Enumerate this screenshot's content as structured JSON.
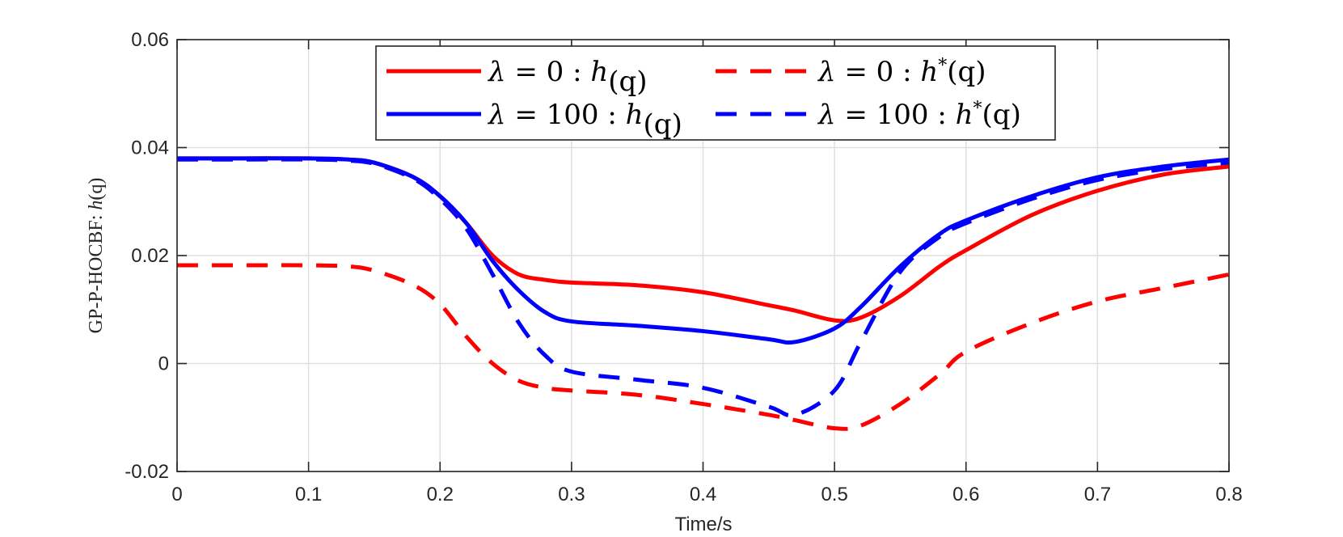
{
  "chart_data": {
    "type": "line",
    "title": "",
    "xlabel": "Time/s",
    "ylabel_prefix": "GP-P-HOCBF: ",
    "ylabel_func": "h",
    "ylabel_arg": "(q)",
    "xlim": [
      0,
      0.8
    ],
    "ylim": [
      -0.02,
      0.06
    ],
    "grid": true,
    "legend_position": "top-center",
    "x_ticks": [
      0,
      0.1,
      0.2,
      0.3,
      0.4,
      0.5,
      0.6,
      0.7,
      0.8
    ],
    "x_tick_labels": [
      "0",
      "0.1",
      "0.2",
      "0.3",
      "0.4",
      "0.5",
      "0.6",
      "0.7",
      "0.8"
    ],
    "y_ticks": [
      -0.02,
      0,
      0.02,
      0.04,
      0.06
    ],
    "y_tick_labels": [
      "-0.02",
      "0",
      "0.02",
      "0.04",
      "0.06"
    ],
    "x": [
      0,
      0.05,
      0.1,
      0.13,
      0.15,
      0.18,
      0.2,
      0.22,
      0.24,
      0.26,
      0.28,
      0.3,
      0.35,
      0.4,
      0.45,
      0.47,
      0.5,
      0.52,
      0.55,
      0.58,
      0.6,
      0.65,
      0.7,
      0.75,
      0.8
    ],
    "series": [
      {
        "name": "λ = 0 : h(q)",
        "legend_lambda": "λ",
        "legend_value": " = 0 : ",
        "legend_func": "h",
        "legend_star": "",
        "legend_arg": "(q)",
        "color": "#ff0000",
        "dash": "solid",
        "values": [
          0.038,
          0.038,
          0.038,
          0.0378,
          0.0372,
          0.0345,
          0.031,
          0.026,
          0.02,
          0.0165,
          0.0155,
          0.015,
          0.0145,
          0.0132,
          0.0108,
          0.0098,
          0.008,
          0.0085,
          0.0125,
          0.018,
          0.021,
          0.0275,
          0.032,
          0.035,
          0.0365
        ]
      },
      {
        "name": "λ = 0 : h*(q)",
        "legend_lambda": "λ",
        "legend_value": " = 0 : ",
        "legend_func": "h",
        "legend_star": "*",
        "legend_arg": "(q)",
        "color": "#ff0000",
        "dash": "dashed",
        "values": [
          0.0182,
          0.0182,
          0.0182,
          0.018,
          0.0172,
          0.0145,
          0.011,
          0.005,
          0.0,
          -0.0032,
          -0.0045,
          -0.005,
          -0.0058,
          -0.0075,
          -0.0095,
          -0.0105,
          -0.012,
          -0.0115,
          -0.0075,
          -0.002,
          0.0022,
          0.0075,
          0.0115,
          0.014,
          0.0165
        ]
      },
      {
        "name": "λ = 100 : h(q)",
        "legend_lambda": "λ",
        "legend_value": " = 100 : ",
        "legend_func": "h",
        "legend_star": "",
        "legend_arg": "(q)",
        "color": "#0000ff",
        "dash": "solid",
        "values": [
          0.038,
          0.038,
          0.038,
          0.0378,
          0.0372,
          0.0345,
          0.031,
          0.026,
          0.019,
          0.0135,
          0.0095,
          0.0078,
          0.007,
          0.006,
          0.0045,
          0.004,
          0.0065,
          0.0105,
          0.018,
          0.024,
          0.0265,
          0.031,
          0.0345,
          0.0365,
          0.0378
        ]
      },
      {
        "name": "λ = 100 : h*(q)",
        "legend_lambda": "λ",
        "legend_value": " = 100 : ",
        "legend_func": "h",
        "legend_star": "*",
        "legend_arg": "(q)",
        "color": "#0000ff",
        "dash": "dashed",
        "values": [
          0.0378,
          0.0378,
          0.0378,
          0.0376,
          0.037,
          0.0342,
          0.0305,
          0.025,
          0.0165,
          0.0075,
          0.0015,
          -0.0015,
          -0.003,
          -0.0045,
          -0.008,
          -0.0095,
          -0.005,
          0.004,
          0.017,
          0.0235,
          0.026,
          0.0305,
          0.034,
          0.036,
          0.0372
        ]
      }
    ]
  }
}
